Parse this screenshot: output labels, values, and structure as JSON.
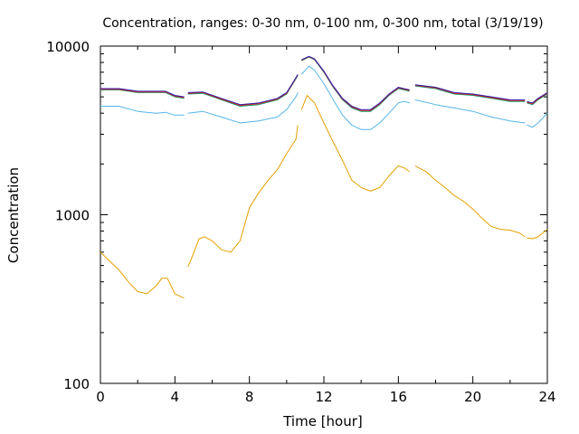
{
  "chart_data": {
    "type": "line",
    "title": "Concentration, ranges: 0-30 nm, 0-100 nm, 0-300 nm, total (3/19/19)",
    "xlabel": "Time [hour]",
    "ylabel": "Concentration",
    "xlim": [
      0,
      24
    ],
    "ylim": [
      100,
      10000
    ],
    "yscale": "log",
    "grid": false,
    "x_ticks": [
      "0",
      "4",
      "8",
      "12",
      "16",
      "20",
      "24"
    ],
    "y_ticks": [
      "100",
      "1000",
      "10000"
    ],
    "series": [
      {
        "color": "#e69f00",
        "segments": [
          [
            [
              0,
              600
            ],
            [
              0.5,
              530
            ],
            [
              1,
              470
            ],
            [
              1.5,
              400
            ],
            [
              2,
              350
            ],
            [
              2.5,
              340
            ],
            [
              3,
              380
            ],
            [
              3.3,
              420
            ],
            [
              3.6,
              420
            ],
            [
              4,
              340
            ],
            [
              4.5,
              320
            ]
          ],
          [
            [
              4.7,
              490
            ],
            [
              5,
              590
            ],
            [
              5.3,
              720
            ],
            [
              5.6,
              740
            ],
            [
              6,
              700
            ],
            [
              6.5,
              620
            ],
            [
              7,
              600
            ],
            [
              7.5,
              700
            ],
            [
              8,
              1100
            ],
            [
              8.5,
              1350
            ],
            [
              9,
              1600
            ],
            [
              9.5,
              1850
            ],
            [
              10,
              2300
            ],
            [
              10.5,
              2800
            ],
            [
              10.6,
              3400
            ]
          ],
          [
            [
              10.8,
              4200
            ],
            [
              11.1,
              5100
            ],
            [
              11.5,
              4600
            ],
            [
              12,
              3500
            ],
            [
              12.5,
              2700
            ],
            [
              13,
              2100
            ],
            [
              13.5,
              1600
            ],
            [
              14,
              1450
            ],
            [
              14.5,
              1380
            ],
            [
              15,
              1450
            ],
            [
              15.5,
              1700
            ],
            [
              16,
              1950
            ],
            [
              16.3,
              1900
            ],
            [
              16.6,
              1800
            ]
          ],
          [
            [
              16.9,
              1950
            ],
            [
              17.5,
              1800
            ],
            [
              18,
              1600
            ],
            [
              18.5,
              1450
            ],
            [
              19,
              1300
            ],
            [
              19.5,
              1200
            ],
            [
              20,
              1080
            ],
            [
              20.5,
              950
            ],
            [
              21,
              850
            ],
            [
              21.5,
              820
            ],
            [
              22,
              810
            ],
            [
              22.5,
              780
            ],
            [
              22.8,
              740
            ]
          ],
          [
            [
              22.9,
              730
            ],
            [
              23.2,
              720
            ],
            [
              23.5,
              740
            ],
            [
              24,
              820
            ]
          ]
        ]
      },
      {
        "color": "#56b4e9",
        "segments": [
          [
            [
              0,
              4400
            ],
            [
              1,
              4400
            ],
            [
              2,
              4100
            ],
            [
              3,
              4000
            ],
            [
              3.5,
              4050
            ],
            [
              4,
              3900
            ],
            [
              4.5,
              3900
            ]
          ],
          [
            [
              4.7,
              4000
            ],
            [
              5.5,
              4100
            ],
            [
              6.5,
              3800
            ],
            [
              7.5,
              3500
            ],
            [
              8.5,
              3600
            ],
            [
              9.5,
              3800
            ],
            [
              10,
              4200
            ],
            [
              10.5,
              5000
            ],
            [
              10.6,
              5300
            ]
          ],
          [
            [
              10.8,
              6800
            ],
            [
              11.2,
              7600
            ],
            [
              11.5,
              7200
            ],
            [
              12,
              6000
            ],
            [
              12.5,
              4800
            ],
            [
              13,
              3900
            ],
            [
              13.5,
              3400
            ],
            [
              14,
              3200
            ],
            [
              14.5,
              3200
            ],
            [
              15,
              3500
            ],
            [
              15.5,
              4000
            ],
            [
              16,
              4600
            ],
            [
              16.3,
              4700
            ],
            [
              16.6,
              4600
            ]
          ],
          [
            [
              16.9,
              4800
            ],
            [
              18,
              4500
            ],
            [
              19,
              4300
            ],
            [
              20,
              4100
            ],
            [
              21,
              3800
            ],
            [
              22,
              3600
            ],
            [
              22.8,
              3500
            ]
          ],
          [
            [
              22.9,
              3400
            ],
            [
              23.2,
              3300
            ],
            [
              23.5,
              3500
            ],
            [
              24,
              4000
            ]
          ]
        ]
      },
      {
        "color": "#009e73",
        "segments": [
          [
            [
              0,
              5500
            ],
            [
              1,
              5500
            ],
            [
              2,
              5300
            ],
            [
              3,
              5300
            ],
            [
              3.5,
              5300
            ],
            [
              4,
              5000
            ],
            [
              4.5,
              4900
            ]
          ],
          [
            [
              4.7,
              5200
            ],
            [
              5.5,
              5250
            ],
            [
              6.5,
              4800
            ],
            [
              7.5,
              4400
            ],
            [
              8.5,
              4500
            ],
            [
              9.5,
              4800
            ],
            [
              10,
              5200
            ],
            [
              10.5,
              6400
            ],
            [
              10.6,
              6700
            ]
          ],
          [
            [
              10.8,
              8200
            ],
            [
              11.2,
              8600
            ],
            [
              11.5,
              8300
            ],
            [
              12,
              7000
            ],
            [
              12.5,
              5700
            ],
            [
              13,
              4800
            ],
            [
              13.5,
              4300
            ],
            [
              14,
              4100
            ],
            [
              14.5,
              4100
            ],
            [
              15,
              4500
            ],
            [
              15.5,
              5100
            ],
            [
              16,
              5600
            ],
            [
              16.3,
              5500
            ],
            [
              16.6,
              5400
            ]
          ],
          [
            [
              16.9,
              5800
            ],
            [
              18,
              5600
            ],
            [
              19,
              5200
            ],
            [
              20,
              5100
            ],
            [
              21,
              4900
            ],
            [
              22,
              4700
            ],
            [
              22.8,
              4700
            ]
          ],
          [
            [
              22.9,
              4600
            ],
            [
              23.2,
              4500
            ],
            [
              23.5,
              4800
            ],
            [
              24,
              5200
            ]
          ]
        ]
      },
      {
        "color": "#e51e10",
        "segments": [
          [
            [
              0,
              5550
            ],
            [
              1,
              5550
            ],
            [
              2,
              5350
            ],
            [
              3,
              5350
            ],
            [
              3.5,
              5350
            ],
            [
              4,
              5050
            ],
            [
              4.5,
              4950
            ]
          ],
          [
            [
              4.7,
              5250
            ],
            [
              5.5,
              5300
            ],
            [
              6.5,
              4850
            ],
            [
              7.5,
              4450
            ],
            [
              8.5,
              4550
            ],
            [
              9.5,
              4850
            ],
            [
              10,
              5250
            ],
            [
              10.5,
              6450
            ],
            [
              10.6,
              6750
            ]
          ],
          [
            [
              10.8,
              8250
            ],
            [
              11.2,
              8650
            ],
            [
              11.5,
              8350
            ],
            [
              12,
              7050
            ],
            [
              12.5,
              5750
            ],
            [
              13,
              4850
            ],
            [
              13.5,
              4350
            ],
            [
              14,
              4150
            ],
            [
              14.5,
              4150
            ],
            [
              15,
              4550
            ],
            [
              15.5,
              5150
            ],
            [
              16,
              5650
            ],
            [
              16.3,
              5550
            ],
            [
              16.6,
              5450
            ]
          ],
          [
            [
              16.9,
              5850
            ],
            [
              18,
              5650
            ],
            [
              19,
              5250
            ],
            [
              20,
              5150
            ],
            [
              21,
              4950
            ],
            [
              22,
              4750
            ],
            [
              22.8,
              4750
            ]
          ],
          [
            [
              22.9,
              4650
            ],
            [
              23.2,
              4550
            ],
            [
              23.5,
              4850
            ],
            [
              24,
              5250
            ]
          ]
        ]
      },
      {
        "color": "#2a1fb0",
        "segments": [
          [
            [
              0,
              5600
            ],
            [
              1,
              5600
            ],
            [
              2,
              5400
            ],
            [
              3,
              5400
            ],
            [
              3.5,
              5400
            ],
            [
              4,
              5100
            ],
            [
              4.5,
              5000
            ]
          ],
          [
            [
              4.7,
              5300
            ],
            [
              5.5,
              5350
            ],
            [
              6.5,
              4900
            ],
            [
              7.5,
              4500
            ],
            [
              8.5,
              4600
            ],
            [
              9.5,
              4900
            ],
            [
              10,
              5300
            ],
            [
              10.5,
              6500
            ],
            [
              10.6,
              6800
            ]
          ],
          [
            [
              10.8,
              8300
            ],
            [
              11.2,
              8700
            ],
            [
              11.5,
              8400
            ],
            [
              12,
              7100
            ],
            [
              12.5,
              5800
            ],
            [
              13,
              4900
            ],
            [
              13.5,
              4400
            ],
            [
              14,
              4200
            ],
            [
              14.5,
              4200
            ],
            [
              15,
              4600
            ],
            [
              15.5,
              5200
            ],
            [
              16,
              5700
            ],
            [
              16.3,
              5600
            ],
            [
              16.6,
              5500
            ]
          ],
          [
            [
              16.9,
              5900
            ],
            [
              18,
              5700
            ],
            [
              19,
              5300
            ],
            [
              20,
              5200
            ],
            [
              21,
              5000
            ],
            [
              22,
              4800
            ],
            [
              22.8,
              4800
            ]
          ],
          [
            [
              22.9,
              4700
            ],
            [
              23.2,
              4600
            ],
            [
              23.5,
              4900
            ],
            [
              24,
              5300
            ]
          ]
        ]
      }
    ]
  }
}
